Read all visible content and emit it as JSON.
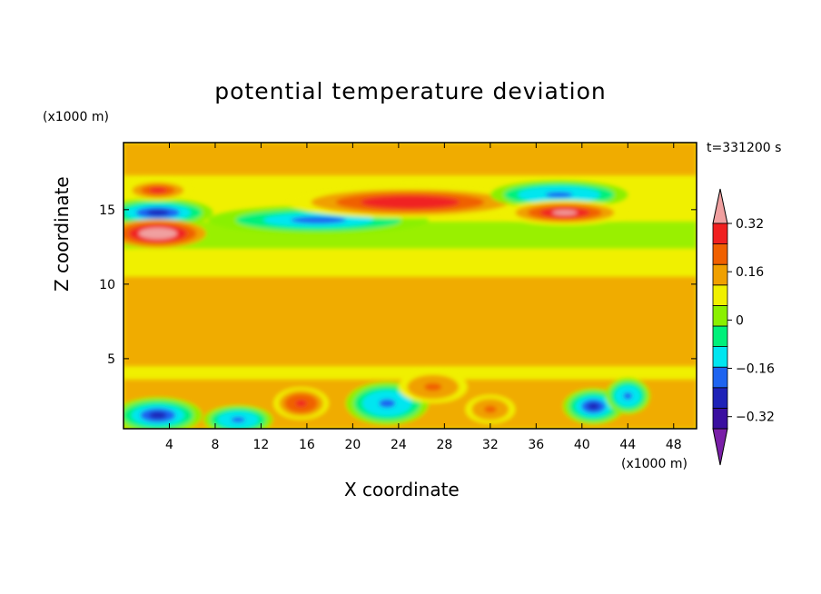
{
  "chart_data": {
    "type": "heatmap",
    "title": "potential temperature deviation",
    "xlabel": "X coordinate",
    "ylabel": "Z coordinate",
    "x_unit": "(x1000 m)",
    "y_unit": "(x1000 m)",
    "time": "t=331200 s",
    "xlim": [
      0,
      50
    ],
    "ylim": [
      0.3,
      19.5
    ],
    "x_ticks": [
      4,
      8,
      12,
      16,
      20,
      24,
      28,
      32,
      36,
      40,
      44,
      48
    ],
    "y_ticks": [
      5,
      10,
      15
    ],
    "colorbar": {
      "levels": [
        -0.4,
        -0.36,
        -0.32,
        -0.24,
        -0.16,
        -0.08,
        0,
        0.08,
        0.16,
        0.24,
        0.32,
        0.4
      ],
      "labels": [
        "0.32",
        "0.16",
        "0",
        "−0.16",
        "−0.32"
      ],
      "label_values": [
        0.32,
        0.16,
        0,
        -0.16,
        -0.32
      ],
      "colors": [
        "#7a1fa8",
        "#3a0fa0",
        "#1e22b8",
        "#1e64f0",
        "#00e6f0",
        "#00f07a",
        "#8af000",
        "#f0f000",
        "#f0a000",
        "#f06000",
        "#f02020",
        "#f0a0a0"
      ]
    },
    "features": [
      {
        "x": 3,
        "z": 1.2,
        "value": -0.36
      },
      {
        "x": 10,
        "z": 0.9,
        "value": -0.3
      },
      {
        "x": 15.5,
        "z": 2.0,
        "value": 0.28
      },
      {
        "x": 23,
        "z": 2.0,
        "value": -0.28
      },
      {
        "x": 27,
        "z": 3.1,
        "value": 0.2
      },
      {
        "x": 32,
        "z": 1.6,
        "value": 0.2
      },
      {
        "x": 41,
        "z": 1.8,
        "value": -0.36
      },
      {
        "x": 44,
        "z": 2.5,
        "value": -0.3
      },
      {
        "x": 3,
        "z": 14.8,
        "value": -0.36
      },
      {
        "x": 3,
        "z": 13.4,
        "value": 0.4
      },
      {
        "x": 3,
        "z": 16.3,
        "value": 0.25
      },
      {
        "x": 17,
        "z": 14.3,
        "value": -0.25
      },
      {
        "x": 25,
        "z": 15.5,
        "value": 0.3
      },
      {
        "x": 38,
        "z": 16.0,
        "value": -0.3
      },
      {
        "x": 38.5,
        "z": 14.8,
        "value": 0.36
      }
    ]
  }
}
